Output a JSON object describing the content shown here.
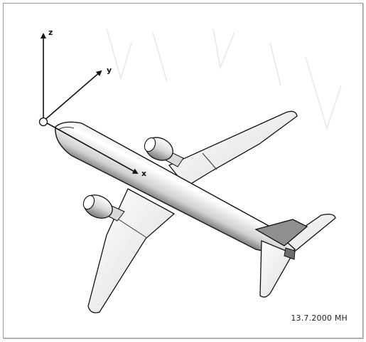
{
  "axes": {
    "x_label": "x",
    "y_label": "y",
    "z_label": "z"
  },
  "stamp": "13.7.2000 MH",
  "colors": {
    "frame_border": "#9a9a9a",
    "line": "#111111",
    "fin_shade": "#8f8f8f"
  }
}
